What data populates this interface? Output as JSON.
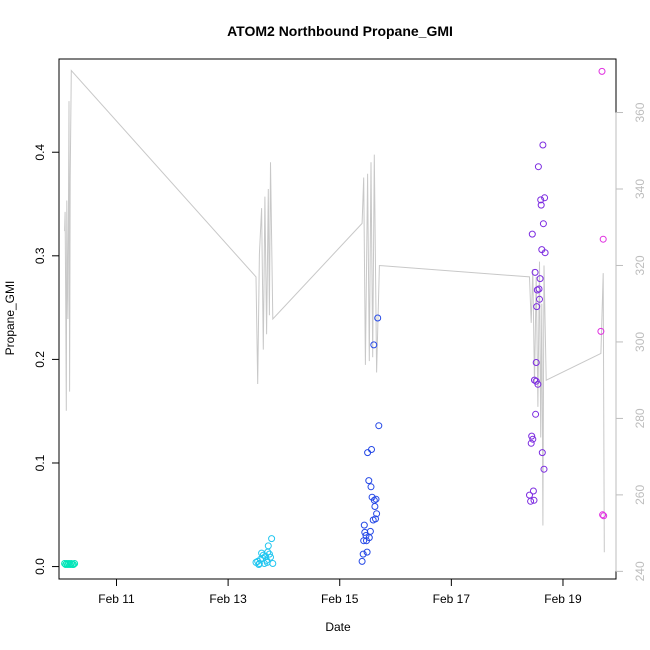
{
  "chart_data": {
    "type": "scatter",
    "title": "ATOM2 Northbound Propane_GMI",
    "xlabel": "Date",
    "ylabel": "Propane_GMI",
    "x_ticks": [
      "Feb 11",
      "Feb 13",
      "Feb 15",
      "Feb 17",
      "Feb 19"
    ],
    "x_tick_values": [
      11,
      13,
      15,
      17,
      19
    ],
    "xlim": [
      9.97,
      19.95
    ],
    "ylim": [
      -0.012,
      0.49
    ],
    "y_ticks": [
      0.0,
      0.1,
      0.2,
      0.3,
      0.4
    ],
    "y_tick_labels": [
      "0.0",
      "0.1",
      "0.2",
      "0.3",
      "0.4"
    ],
    "y2_ticks": [
      240,
      260,
      280,
      300,
      320,
      340,
      360
    ],
    "y2_tick_labels": [
      "240",
      "260",
      "280",
      "300",
      "320",
      "340",
      "360"
    ],
    "y2lim": [
      238,
      374
    ],
    "grid": false,
    "legend": "none",
    "series": [
      {
        "color": "#00e5b8",
        "marker": "open-circle",
        "points": [
          [
            10.07,
            0.003
          ],
          [
            10.09,
            0.002
          ],
          [
            10.11,
            0.003
          ],
          [
            10.13,
            0.002
          ],
          [
            10.15,
            0.003
          ],
          [
            10.17,
            0.002
          ],
          [
            10.19,
            0.003
          ],
          [
            10.21,
            0.002
          ],
          [
            10.23,
            0.002
          ],
          [
            10.25,
            0.003
          ]
        ]
      },
      {
        "color": "#21c6f0",
        "marker": "open-circle",
        "points": [
          [
            13.5,
            0.004
          ],
          [
            13.53,
            0.005
          ],
          [
            13.56,
            0.003
          ],
          [
            13.58,
            0.007
          ],
          [
            13.6,
            0.013
          ],
          [
            13.62,
            0.008
          ],
          [
            13.65,
            0.003
          ],
          [
            13.67,
            0.01
          ],
          [
            13.69,
            0.006
          ],
          [
            13.71,
            0.014
          ],
          [
            13.72,
            0.02
          ],
          [
            13.74,
            0.012
          ],
          [
            13.76,
            0.009
          ],
          [
            13.78,
            0.027
          ],
          [
            13.8,
            0.003
          ],
          [
            13.55,
            0.002
          ],
          [
            13.63,
            0.011
          ],
          [
            13.7,
            0.004
          ]
        ]
      },
      {
        "color": "#2448e6",
        "marker": "open-circle",
        "points": [
          [
            15.4,
            0.005
          ],
          [
            15.42,
            0.012
          ],
          [
            15.43,
            0.025
          ],
          [
            15.45,
            0.033
          ],
          [
            15.47,
            0.03
          ],
          [
            15.49,
            0.014
          ],
          [
            15.5,
            0.11
          ],
          [
            15.52,
            0.083
          ],
          [
            15.53,
            0.028
          ],
          [
            15.55,
            0.034
          ],
          [
            15.56,
            0.077
          ],
          [
            15.57,
            0.113
          ],
          [
            15.58,
            0.067
          ],
          [
            15.6,
            0.045
          ],
          [
            15.61,
            0.214
          ],
          [
            15.62,
            0.064
          ],
          [
            15.63,
            0.058
          ],
          [
            15.64,
            0.046
          ],
          [
            15.65,
            0.065
          ],
          [
            15.66,
            0.051
          ],
          [
            15.68,
            0.24
          ],
          [
            15.7,
            0.136
          ],
          [
            15.44,
            0.04
          ],
          [
            15.48,
            0.025
          ]
        ]
      },
      {
        "color": "#7c2be0",
        "marker": "open-circle",
        "points": [
          [
            18.4,
            0.069
          ],
          [
            18.42,
            0.063
          ],
          [
            18.43,
            0.119
          ],
          [
            18.44,
            0.126
          ],
          [
            18.45,
            0.321
          ],
          [
            18.46,
            0.123
          ],
          [
            18.47,
            0.073
          ],
          [
            18.48,
            0.064
          ],
          [
            18.5,
            0.284
          ],
          [
            18.51,
            0.147
          ],
          [
            18.52,
            0.197
          ],
          [
            18.53,
            0.251
          ],
          [
            18.54,
            0.267
          ],
          [
            18.55,
            0.176
          ],
          [
            18.56,
            0.386
          ],
          [
            18.57,
            0.268
          ],
          [
            18.58,
            0.258
          ],
          [
            18.59,
            0.278
          ],
          [
            18.6,
            0.354
          ],
          [
            18.61,
            0.349
          ],
          [
            18.62,
            0.306
          ],
          [
            18.63,
            0.11
          ],
          [
            18.64,
            0.407
          ],
          [
            18.65,
            0.331
          ],
          [
            18.66,
            0.094
          ],
          [
            18.67,
            0.356
          ],
          [
            18.68,
            0.303
          ],
          [
            18.52,
            0.179
          ],
          [
            18.49,
            0.18
          ]
        ]
      },
      {
        "color": "#e02ee0",
        "marker": "open-circle",
        "points": [
          [
            19.7,
            0.478
          ],
          [
            19.72,
            0.316
          ],
          [
            19.68,
            0.227
          ],
          [
            19.71,
            0.05
          ],
          [
            19.73,
            0.049
          ]
        ]
      }
    ],
    "secondary_line": {
      "color": "#c8c8c8",
      "axis": "right",
      "points": [
        [
          10.07,
          329
        ],
        [
          10.08,
          334
        ],
        [
          10.09,
          311
        ],
        [
          10.1,
          282
        ],
        [
          10.11,
          337
        ],
        [
          10.12,
          315
        ],
        [
          10.13,
          306
        ],
        [
          10.15,
          363
        ],
        [
          10.16,
          287
        ],
        [
          10.17,
          343
        ],
        [
          10.19,
          371
        ],
        [
          13.5,
          317
        ],
        [
          13.53,
          289
        ],
        [
          13.56,
          323
        ],
        [
          13.6,
          335
        ],
        [
          13.63,
          298
        ],
        [
          13.66,
          338
        ],
        [
          13.69,
          302
        ],
        [
          13.72,
          340
        ],
        [
          13.74,
          307
        ],
        [
          13.76,
          347
        ],
        [
          13.8,
          306
        ],
        [
          15.4,
          331
        ],
        [
          15.43,
          343
        ],
        [
          15.46,
          294
        ],
        [
          15.5,
          344
        ],
        [
          15.53,
          295
        ],
        [
          15.56,
          347
        ],
        [
          15.59,
          296
        ],
        [
          15.62,
          349
        ],
        [
          15.66,
          292
        ],
        [
          15.71,
          320
        ],
        [
          18.4,
          317
        ],
        [
          18.43,
          305
        ],
        [
          18.46,
          319
        ],
        [
          18.49,
          289
        ],
        [
          18.52,
          317
        ],
        [
          18.55,
          283
        ],
        [
          18.58,
          321
        ],
        [
          18.6,
          275
        ],
        [
          18.62,
          310
        ],
        [
          18.64,
          252
        ],
        [
          18.66,
          320
        ],
        [
          18.7,
          290
        ],
        [
          19.68,
          297
        ],
        [
          19.72,
          318
        ],
        [
          19.74,
          245
        ]
      ]
    }
  }
}
